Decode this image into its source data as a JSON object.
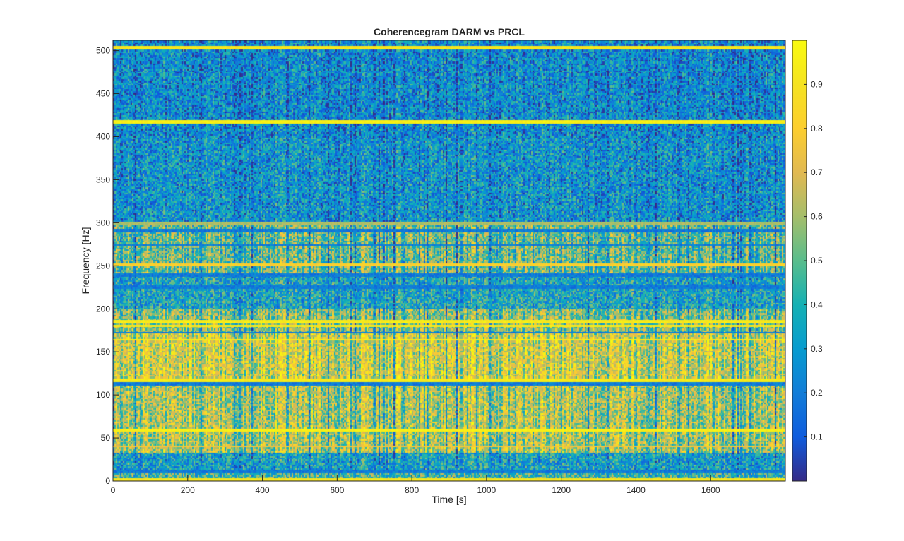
{
  "chart_data": {
    "type": "heatmap",
    "title": "Coherencegram DARM vs PRCL",
    "xlabel": "Time [s]",
    "ylabel": "Frequency [Hz]",
    "xlim": [
      0,
      1800
    ],
    "ylim": [
      0,
      512
    ],
    "x_ticks": [
      "0",
      "200",
      "400",
      "600",
      "800",
      "1000",
      "1200",
      "1400",
      "1600"
    ],
    "x_tick_values": [
      0,
      200,
      400,
      600,
      800,
      1000,
      1200,
      1400,
      1600
    ],
    "y_ticks": [
      "0",
      "50",
      "100",
      "150",
      "200",
      "250",
      "300",
      "350",
      "400",
      "450",
      "500"
    ],
    "y_tick_values": [
      0,
      50,
      100,
      150,
      200,
      250,
      300,
      350,
      400,
      450,
      500
    ],
    "colorbar": {
      "range": [
        0,
        1
      ],
      "ticks": [
        "0.1",
        "0.2",
        "0.3",
        "0.4",
        "0.5",
        "0.6",
        "0.7",
        "0.8",
        "0.9"
      ],
      "tick_values": [
        0.1,
        0.2,
        0.3,
        0.4,
        0.5,
        0.6,
        0.7,
        0.8,
        0.9
      ],
      "colormap": "parula"
    },
    "grid": false,
    "time_step_s": 4,
    "freq_step_hz": 2,
    "background_coherence_by_band": [
      {
        "f_range": [
          0,
          10
        ],
        "mean": 0.45
      },
      {
        "f_range": [
          10,
          35
        ],
        "mean": 0.33
      },
      {
        "f_range": [
          35,
          115
        ],
        "mean": 0.62
      },
      {
        "f_range": [
          115,
          175
        ],
        "mean": 0.7
      },
      {
        "f_range": [
          175,
          200
        ],
        "mean": 0.55
      },
      {
        "f_range": [
          200,
          240
        ],
        "mean": 0.35
      },
      {
        "f_range": [
          240,
          300
        ],
        "mean": 0.5
      },
      {
        "f_range": [
          300,
          400
        ],
        "mean": 0.28
      },
      {
        "f_range": [
          400,
          512
        ],
        "mean": 0.25
      }
    ],
    "coherent_lines_hz": [
      {
        "f": 2,
        "coherence": 0.95
      },
      {
        "f": 41,
        "coherence": 0.8
      },
      {
        "f": 60,
        "coherence": 0.99
      },
      {
        "f": 118,
        "coherence": 0.97
      },
      {
        "f": 165,
        "coherence": 0.97
      },
      {
        "f": 181,
        "coherence": 0.97
      },
      {
        "f": 186,
        "coherence": 0.97
      },
      {
        "f": 252,
        "coherence": 0.85
      },
      {
        "f": 300,
        "coherence": 0.65
      },
      {
        "f": 418,
        "coherence": 0.99
      },
      {
        "f": 504,
        "coherence": 0.95
      }
    ],
    "low_coherence_lines_hz": [
      12,
      114,
      173,
      226,
      240,
      275,
      292
    ]
  }
}
